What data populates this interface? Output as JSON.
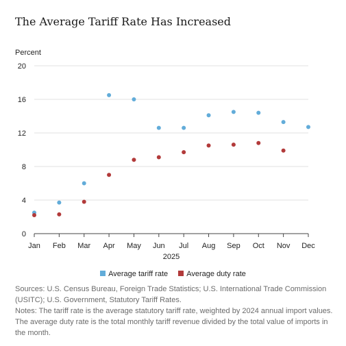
{
  "chart_data": {
    "type": "scatter",
    "title": "The Average Tariff Rate Has Increased",
    "ylabel": "Percent",
    "xlabel": "2025",
    "categories": [
      "Jan",
      "Feb",
      "Mar",
      "Apr",
      "May",
      "Jun",
      "Jul",
      "Aug",
      "Sep",
      "Oct",
      "Nov",
      "Dec"
    ],
    "yticks": [
      "0",
      "4",
      "8",
      "12",
      "16",
      "20"
    ],
    "ylim": [
      0,
      20
    ],
    "grid": true,
    "legend_position": "bottom",
    "series": [
      {
        "name": "Average tariff rate",
        "color": "#62acd9",
        "values": [
          2.5,
          3.7,
          6.0,
          16.5,
          16.0,
          12.6,
          12.6,
          14.1,
          14.5,
          14.4,
          13.3,
          12.7
        ]
      },
      {
        "name": "Average duty rate",
        "color": "#b23a3a",
        "values": [
          2.2,
          2.3,
          3.8,
          7.0,
          8.8,
          9.1,
          9.7,
          10.5,
          10.6,
          10.8,
          9.9,
          null
        ]
      }
    ]
  },
  "sources": "Sources: U.S. Census Bureau, Foreign Trade Statistics; U.S. International Trade Commission (USITC); U.S. Government, Statutory Tariff Rates.",
  "notes": "Notes: The tariff rate is the average statutory tariff rate, weighted by 2024 annual import values. The average duty rate is the total monthly tariff revenue divided by the total value of imports in the month."
}
